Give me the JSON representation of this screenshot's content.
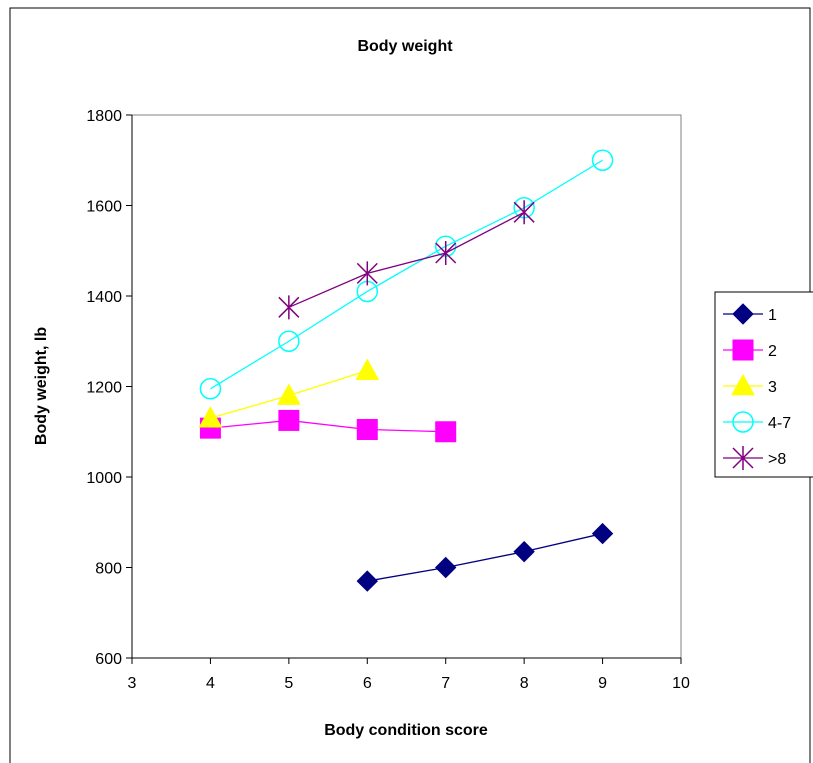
{
  "chart_data": {
    "type": "line",
    "title": "Body weight",
    "xlabel": "Body condition score",
    "ylabel": "Body weight, lb",
    "xlim": [
      3,
      10
    ],
    "ylim": [
      600,
      1800
    ],
    "xticks": [
      "3",
      "4",
      "5",
      "6",
      "7",
      "8",
      "9",
      "10"
    ],
    "yticks": [
      "600",
      "800",
      "1000",
      "1200",
      "1400",
      "1600",
      "1800"
    ],
    "grid": false,
    "legend_position": "right",
    "series": [
      {
        "name": "1",
        "color": "#000080",
        "marker": "diamond",
        "x": [
          6,
          7,
          8,
          9
        ],
        "y": [
          770,
          800,
          835,
          875
        ]
      },
      {
        "name": "2",
        "color": "#FF00FF",
        "marker": "square",
        "x": [
          4,
          5,
          6,
          7
        ],
        "y": [
          1108,
          1125,
          1105,
          1100
        ]
      },
      {
        "name": "3",
        "color": "#FFFF00",
        "marker": "triangle",
        "x": [
          4,
          5,
          6
        ],
        "y": [
          1130,
          1180,
          1235
        ]
      },
      {
        "name": "4-7",
        "color": "#00FFFF",
        "marker": "circle",
        "x": [
          4,
          5,
          6,
          7,
          8,
          9
        ],
        "y": [
          1195,
          1300,
          1410,
          1510,
          1595,
          1700
        ]
      },
      {
        "name": ">8",
        "color": "#800080",
        "marker": "star",
        "x": [
          5,
          6,
          7,
          8
        ],
        "y": [
          1375,
          1450,
          1495,
          1585
        ]
      }
    ]
  }
}
